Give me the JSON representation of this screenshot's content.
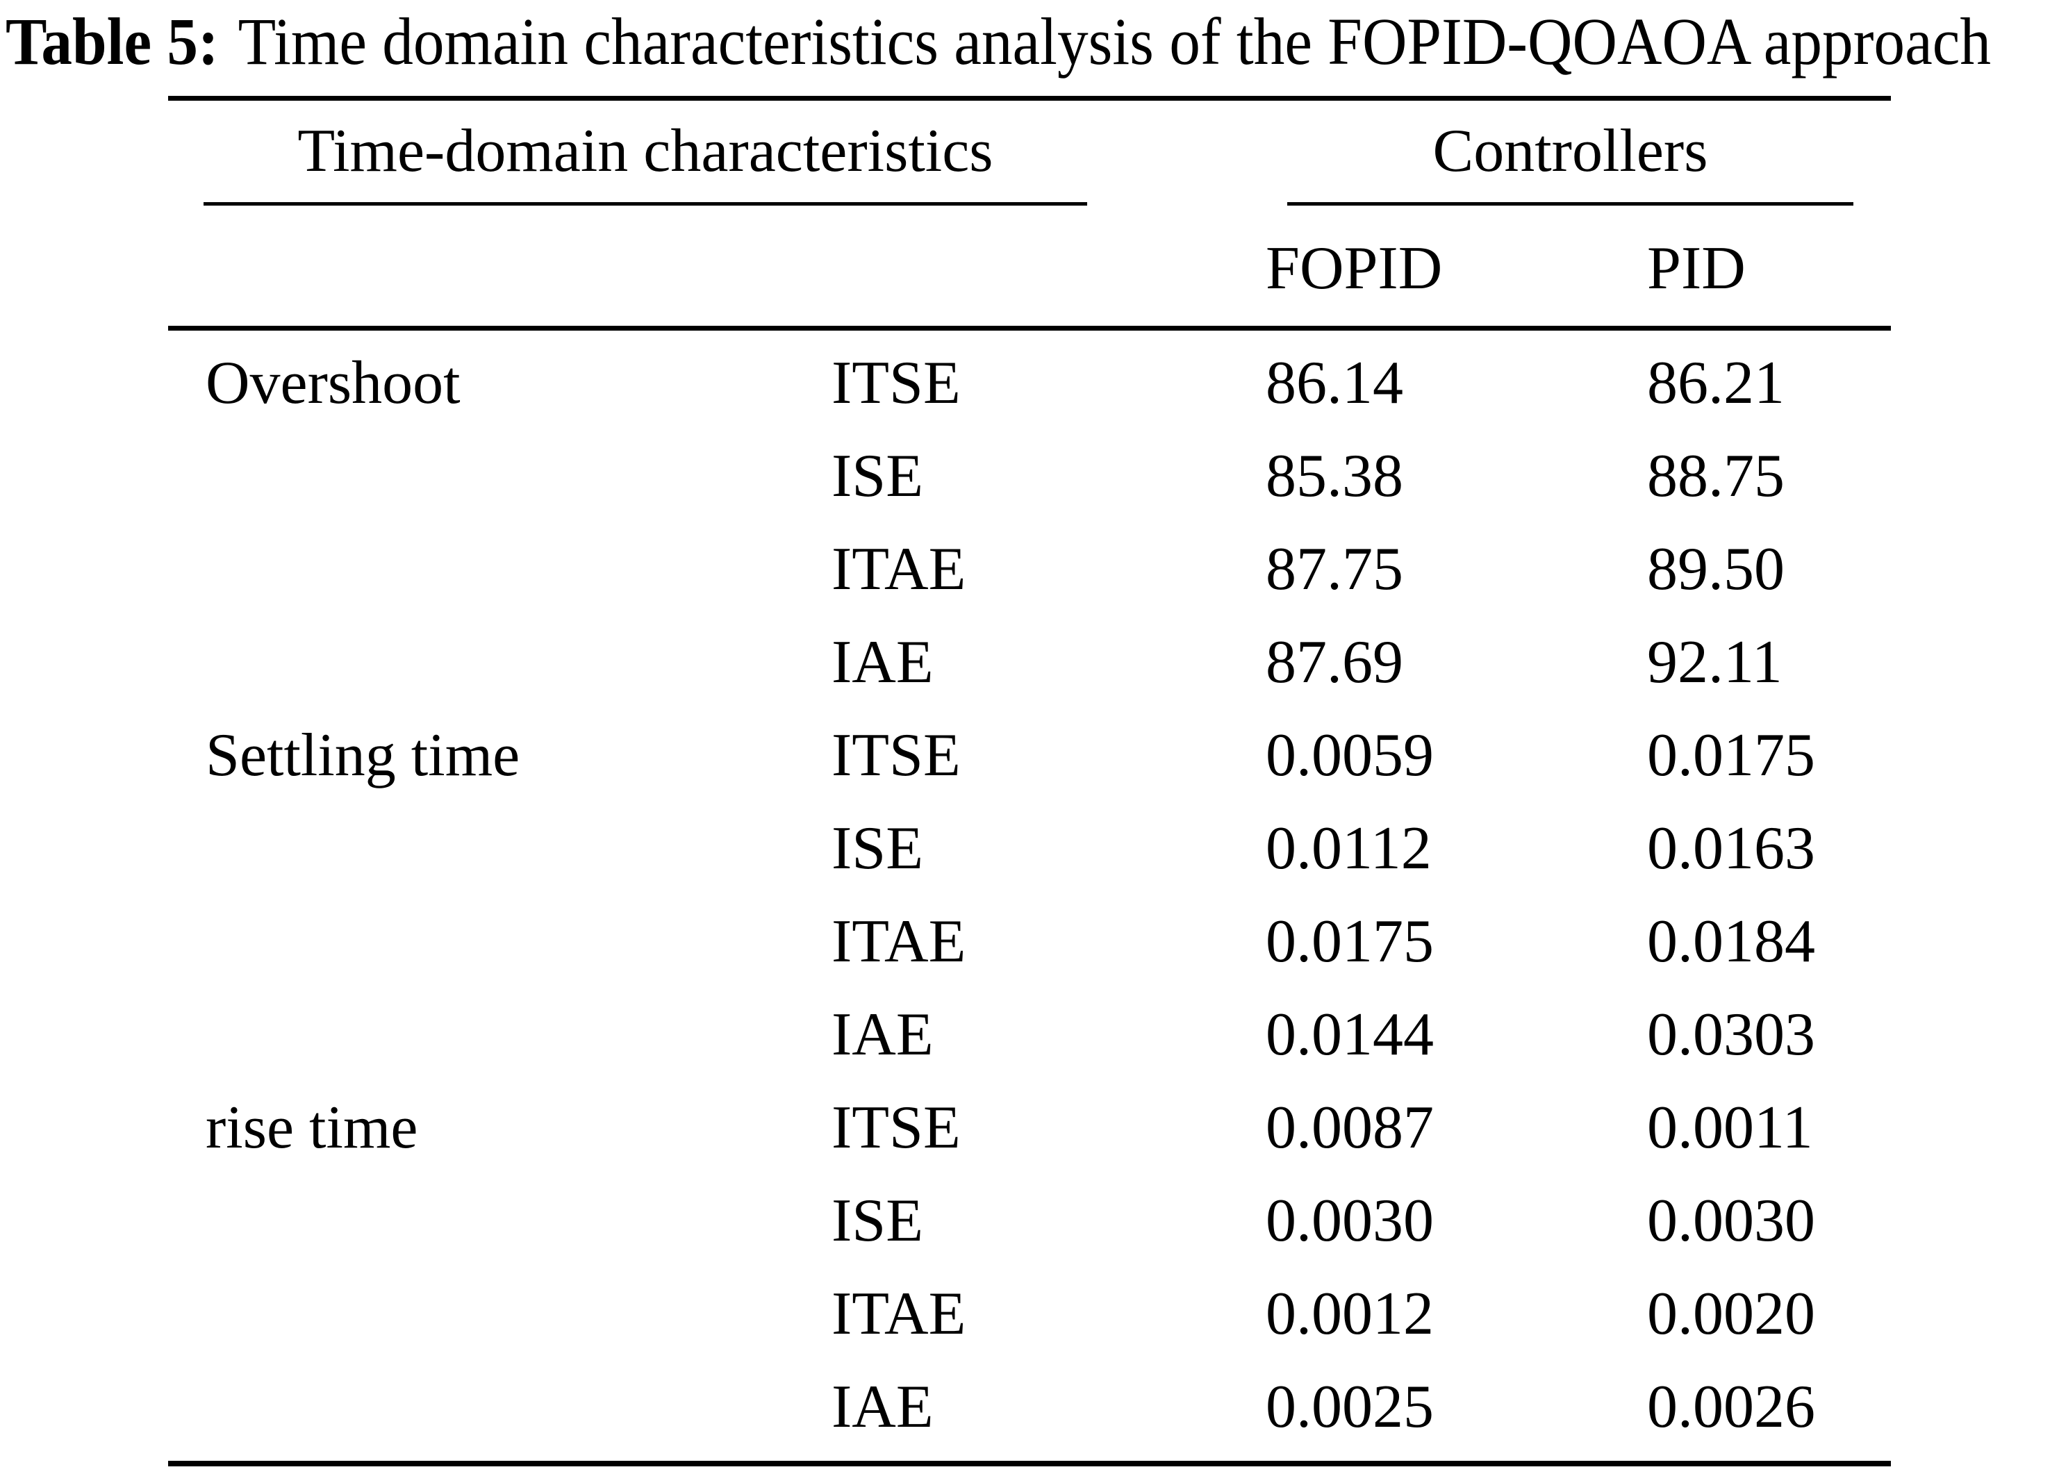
{
  "title": {
    "label": "Table 5:",
    "text": "Time domain characteristics analysis of the FOPID-QOAOA approach"
  },
  "header": {
    "group_left": "Time-domain characteristics",
    "group_right": "Controllers",
    "col_fopid": "FOPID",
    "col_pid": "PID"
  },
  "table": {
    "rows": [
      {
        "characteristic": "Overshoot",
        "criterion": "ITSE",
        "fopid": "86.14",
        "pid": "86.21"
      },
      {
        "characteristic": "",
        "criterion": "ISE",
        "fopid": "85.38",
        "pid": "88.75"
      },
      {
        "characteristic": "",
        "criterion": "ITAE",
        "fopid": "87.75",
        "pid": "89.50"
      },
      {
        "characteristic": "",
        "criterion": "IAE",
        "fopid": "87.69",
        "pid": "92.11"
      },
      {
        "characteristic": "Settling time",
        "criterion": "ITSE",
        "fopid": "0.0059",
        "pid": "0.0175"
      },
      {
        "characteristic": "",
        "criterion": "ISE",
        "fopid": "0.0112",
        "pid": "0.0163"
      },
      {
        "characteristic": "",
        "criterion": "ITAE",
        "fopid": "0.0175",
        "pid": "0.0184"
      },
      {
        "characteristic": "",
        "criterion": "IAE",
        "fopid": "0.0144",
        "pid": "0.0303"
      },
      {
        "characteristic": "rise time",
        "criterion": "ITSE",
        "fopid": "0.0087",
        "pid": "0.0011"
      },
      {
        "characteristic": "",
        "criterion": "ISE",
        "fopid": "0.0030",
        "pid": "0.0030"
      },
      {
        "characteristic": "",
        "criterion": "ITAE",
        "fopid": "0.0012",
        "pid": "0.0020"
      },
      {
        "characteristic": "",
        "criterion": "IAE",
        "fopid": "0.0025",
        "pid": "0.0026"
      }
    ]
  },
  "colors": {
    "background": "#ffffff",
    "text": "#000000",
    "rule": "#000000"
  }
}
